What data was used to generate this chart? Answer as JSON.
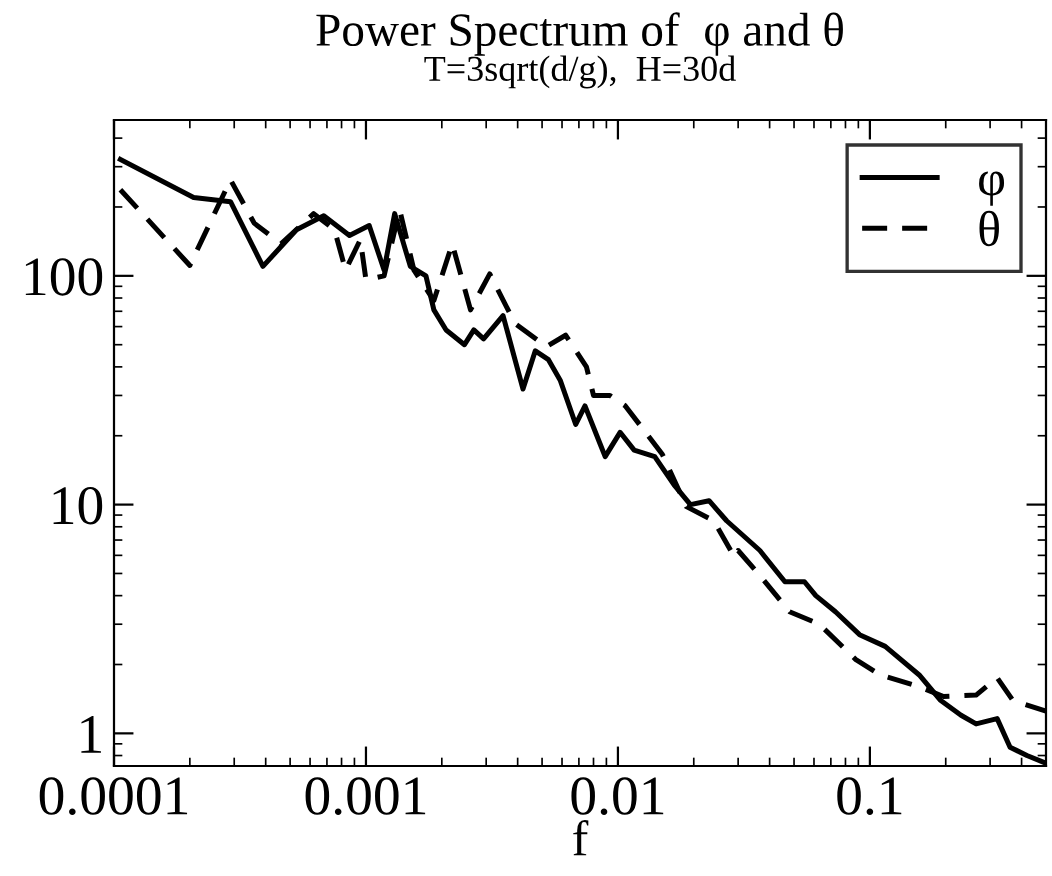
{
  "chart_data": {
    "type": "line",
    "title": "Power Spectrum of  φ and θ",
    "subtitle": "T=3sqrt(d/g),  H=30d",
    "xlabel": "f",
    "log": "xy",
    "xlim": [
      0.0001,
      0.5
    ],
    "ylim": [
      0.72,
      480
    ],
    "xticks": [
      {
        "value": 0.0001,
        "label": "0.0001"
      },
      {
        "value": 0.001,
        "label": "0.001"
      },
      {
        "value": 0.01,
        "label": "0.01"
      },
      {
        "value": 0.1,
        "label": "0.1"
      }
    ],
    "yticks": [
      1,
      10,
      100
    ],
    "grid": false,
    "legend": "top right",
    "marker": "none",
    "series": [
      {
        "name": "φ",
        "color": "#000000",
        "line_style": "solid",
        "x": [
          0.000106,
          0.000207,
          0.00029,
          0.00039,
          0.00053,
          0.00068,
          0.00086,
          0.00103,
          0.00118,
          0.0013,
          0.0015,
          0.00173,
          0.00186,
          0.00208,
          0.00246,
          0.00268,
          0.00293,
          0.0035,
          0.0042,
          0.0047,
          0.0053,
          0.0059,
          0.0068,
          0.0074,
          0.0085,
          0.0089,
          0.0102,
          0.0116,
          0.014,
          0.0167,
          0.0194,
          0.023,
          0.027,
          0.0366,
          0.046,
          0.055,
          0.061,
          0.073,
          0.091,
          0.115,
          0.157,
          0.19,
          0.23,
          0.264,
          0.32,
          0.36,
          0.42,
          0.5
        ],
        "values": [
          323,
          220,
          211,
          110,
          159,
          183,
          150,
          166,
          106,
          187,
          110,
          100,
          71,
          58,
          50,
          58,
          53,
          67,
          32,
          47,
          43,
          35,
          22.4,
          27,
          18.4,
          16.2,
          20.7,
          17.3,
          16.2,
          12.2,
          10,
          10.4,
          8.5,
          6.3,
          4.6,
          4.6,
          4.0,
          3.4,
          2.7,
          2.4,
          1.8,
          1.4,
          1.2,
          1.1,
          1.16,
          0.87,
          0.8,
          0.74
        ]
      },
      {
        "name": "θ",
        "color": "#000000",
        "line_style": "dashed",
        "x": [
          0.000106,
          0.0002,
          0.00029,
          0.00036,
          0.00046,
          0.00062,
          0.00075,
          0.00083,
          0.00095,
          0.001,
          0.00118,
          0.00136,
          0.00155,
          0.00186,
          0.0022,
          0.0026,
          0.0031,
          0.0039,
          0.0052,
          0.0062,
          0.0075,
          0.008,
          0.0093,
          0.0107,
          0.015,
          0.0187,
          0.024,
          0.029,
          0.03,
          0.0366,
          0.048,
          0.063,
          0.088,
          0.11,
          0.157,
          0.196,
          0.264,
          0.32,
          0.37,
          0.5
        ],
        "values": [
          238,
          111,
          263,
          170,
          138,
          187,
          159,
          106,
          144,
          96,
          100,
          195,
          106,
          78,
          138,
          71,
          102,
          62,
          49,
          55,
          40,
          30,
          30,
          27,
          16.6,
          9.8,
          8.5,
          5.9,
          6.3,
          4.9,
          3.4,
          3.0,
          2.1,
          1.8,
          1.6,
          1.45,
          1.47,
          1.75,
          1.39,
          1.25
        ]
      }
    ]
  }
}
